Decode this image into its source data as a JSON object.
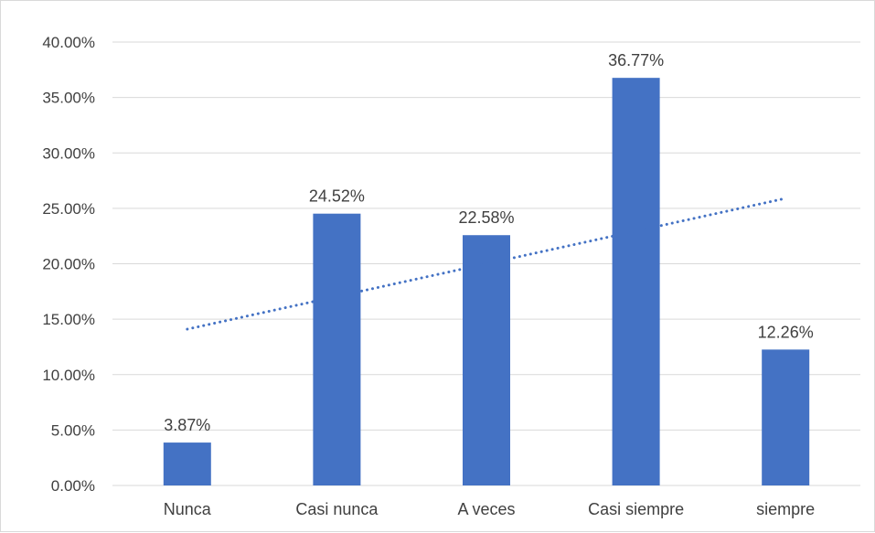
{
  "chart_data": {
    "type": "bar",
    "title": "",
    "xlabel": "",
    "ylabel": "",
    "categories": [
      "Nunca",
      "Casi nunca",
      "A veces",
      "Casi siempre",
      "siempre"
    ],
    "values": [
      3.87,
      24.52,
      22.58,
      36.77,
      12.26
    ],
    "data_labels": [
      "3.87%",
      "24.52%",
      "22.58%",
      "36.77%",
      "12.26%"
    ],
    "ylim": [
      0,
      40
    ],
    "yticks": [
      0,
      5,
      10,
      15,
      20,
      25,
      30,
      35,
      40
    ],
    "ytick_labels": [
      "0.00%",
      "5.00%",
      "10.00%",
      "15.00%",
      "20.00%",
      "25.00%",
      "30.00%",
      "35.00%",
      "40.00%"
    ],
    "grid": true,
    "legend": "none",
    "trendline": {
      "type": "linear",
      "style": "dotted",
      "start": 14.1,
      "end": 25.9
    },
    "colors": {
      "bar": "#4472c4",
      "trendline": "#4472c4",
      "grid": "#d9d9d9",
      "text": "#404040"
    }
  }
}
